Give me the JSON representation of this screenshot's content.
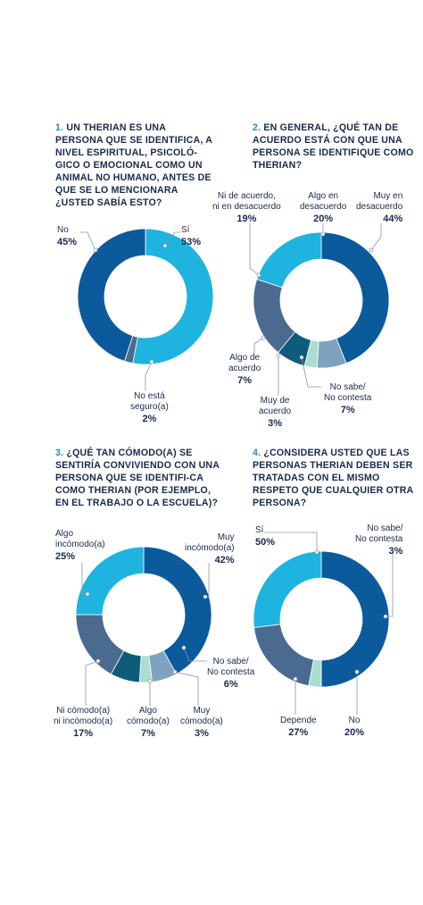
{
  "colors": {
    "dark_blue": "#0b5a9c",
    "cyan": "#1fb3e0",
    "slate": "#4b6a8f",
    "teal_dark": "#0e5c7a",
    "light_steel": "#7fa3bf",
    "mint": "#a9dfcf",
    "question_number": "#1f8ccf",
    "text": "#1a2a4a"
  },
  "chart_data": [
    {
      "type": "pie",
      "donut": true,
      "title_number": "1.",
      "title": "Un therian es una persona que se identifica, a nivel espiritual, psicoló-gico o emocional como un animal no humano, antes de que se lo mencionara ¿usted sabía esto?",
      "slices": [
        {
          "name": "Sí",
          "value": 53,
          "label": "53%",
          "color": "#1fb3e0"
        },
        {
          "name": "No está seguro(a)",
          "value": 2,
          "label": "2%",
          "color": "#4b6a8f"
        },
        {
          "name": "No",
          "value": 45,
          "label": "45%",
          "color": "#0b5a9c"
        }
      ]
    },
    {
      "type": "pie",
      "donut": true,
      "title_number": "2.",
      "title": "En general, ¿qué tan de acuerdo está con que una persona se identifique como therian?",
      "slices": [
        {
          "name": "Muy en desacuerdo",
          "value": 44,
          "label": "44%",
          "color": "#0b5a9c"
        },
        {
          "name": "No sabe/ No contesta",
          "value": 7,
          "label": "7%",
          "color": "#7fa3bf"
        },
        {
          "name": "Muy de acuerdo",
          "value": 3,
          "label": "3%",
          "color": "#a9dfcf"
        },
        {
          "name": "Algo de acuerdo",
          "value": 7,
          "label": "7%",
          "color": "#0e5c7a"
        },
        {
          "name": "Ni de acuerdo, ni en desacuerdo",
          "value": 19,
          "label": "19%",
          "color": "#4b6a8f"
        },
        {
          "name": "Algo en desacuerdo",
          "value": 20,
          "label": "20%",
          "color": "#1fb3e0"
        }
      ]
    },
    {
      "type": "pie",
      "donut": true,
      "title_number": "3.",
      "title": "¿Qué tan cómodo(a) se sentiría conviviendo con una persona que se identifi-ca como therian (por ejemplo, en el trabajo o la escuela)?",
      "slices": [
        {
          "name": "Muy incómodo(a)",
          "value": 42,
          "label": "42%",
          "color": "#0b5a9c"
        },
        {
          "name": "No sabe/ No contesta",
          "value": 6,
          "label": "6%",
          "color": "#7fa3bf"
        },
        {
          "name": "Muy cómodo(a)",
          "value": 3,
          "label": "3%",
          "color": "#a9dfcf"
        },
        {
          "name": "Algo cómodo(a)",
          "value": 7,
          "label": "7%",
          "color": "#0e5c7a"
        },
        {
          "name": "Ni cómodo(a) ni incómodo(a)",
          "value": 17,
          "label": "17%",
          "color": "#4b6a8f"
        },
        {
          "name": "Algo incómodo(a)",
          "value": 25,
          "label": "25%",
          "color": "#1fb3e0"
        }
      ]
    },
    {
      "type": "pie",
      "donut": true,
      "title_number": "4.",
      "title": "¿Considera usted que las personas therian deben ser tratadas con el mismo respeto que cualquier otra persona?",
      "slices": [
        {
          "name": "Sí",
          "value": 50,
          "label": "50%",
          "color": "#0b5a9c"
        },
        {
          "name": "No sabe/ No contesta",
          "value": 3,
          "label": "3%",
          "color": "#a9dfcf"
        },
        {
          "name": "No",
          "value": 20,
          "label": "20%",
          "color": "#4b6a8f"
        },
        {
          "name": "Depende",
          "value": 27,
          "label": "27%",
          "color": "#1fb3e0"
        }
      ]
    }
  ],
  "labels": {
    "c1": {
      "si_name": "Sí",
      "si_pct": "53%",
      "no_name": "No",
      "no_pct": "45%",
      "ns_name_1": "No está",
      "ns_name_2": "seguro(a)",
      "ns_pct": "2%"
    },
    "c2": {
      "ni_1": "Ni de acuerdo,",
      "ni_2": "ni en desacuerdo",
      "ni_pct": "19%",
      "ae_1": "Algo en",
      "ae_2": "desacuerdo",
      "ae_pct": "20%",
      "md_1": "Muy en",
      "md_2": "desacuerdo",
      "md_pct": "44%",
      "ad_1": "Algo de",
      "ad_2": "acuerdo",
      "ad_pct": "7%",
      "ma_1": "Muy de",
      "ma_2": "acuerdo",
      "ma_pct": "3%",
      "ns_1": "No sabe/",
      "ns_2": "No contesta",
      "ns_pct": "7%"
    },
    "c3": {
      "ai_1": "Algo",
      "ai_2": "incómodo(a)",
      "ai_pct": "25%",
      "mi_1": "Muy",
      "mi_2": "incómodo(a)",
      "mi_pct": "42%",
      "ns_1": "No sabe/",
      "ns_2": "No contesta",
      "ns_pct": "6%",
      "ni_1": "Ni cómodo(a)",
      "ni_2": "ni incómodo(a)",
      "ni_pct": "17%",
      "ac_1": "Algo",
      "ac_2": "cómodo(a)",
      "ac_pct": "7%",
      "mc_1": "Muy",
      "mc_2": "cómodo(a)",
      "mc_pct": "3%"
    },
    "c4": {
      "si_name": "Sí",
      "si_pct": "50%",
      "ns_1": "No sabe/",
      "ns_2": "No contesta",
      "ns_pct": "3%",
      "dep_name": "Depende",
      "dep_pct": "27%",
      "no_name": "No",
      "no_pct": "20%"
    }
  }
}
